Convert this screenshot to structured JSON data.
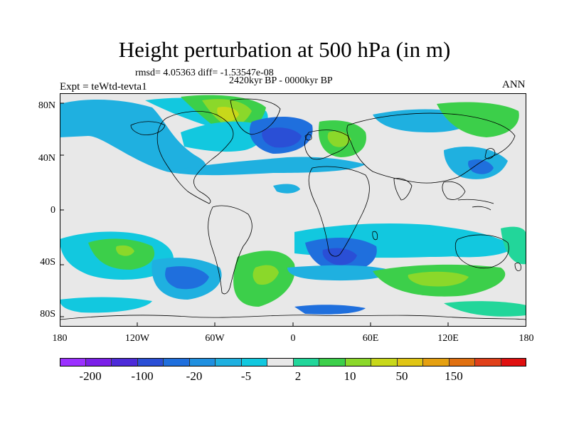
{
  "title": "Height perturbation at 500 hPa (in m)",
  "stats": "rmsd= 4.05363 diff= -1.53547e-08",
  "period": "2420kyr BP - 0000kyr BP",
  "expt": "Expt = teWtd-tevta1",
  "season": "ANN",
  "lat_labels": [
    "80N",
    "40N",
    "0",
    "40S",
    "80S"
  ],
  "lon_labels": [
    "180",
    "120W",
    "60W",
    "0",
    "60E",
    "120E",
    "180"
  ],
  "colorbar": {
    "colors": [
      "#9b30ff",
      "#7b20e8",
      "#4d2bd9",
      "#2a4fd6",
      "#1f6fdd",
      "#2090e0",
      "#1fb0e0",
      "#12c8df",
      "#e8e8e8",
      "#22d69a",
      "#3ccf4a",
      "#8bd82a",
      "#c8d81a",
      "#e0c514",
      "#e5a010",
      "#e07010",
      "#e0401a",
      "#e01010"
    ],
    "labels": [
      "-200",
      "-100",
      "-20",
      "-5",
      "2",
      "10",
      "50",
      "150"
    ]
  }
}
